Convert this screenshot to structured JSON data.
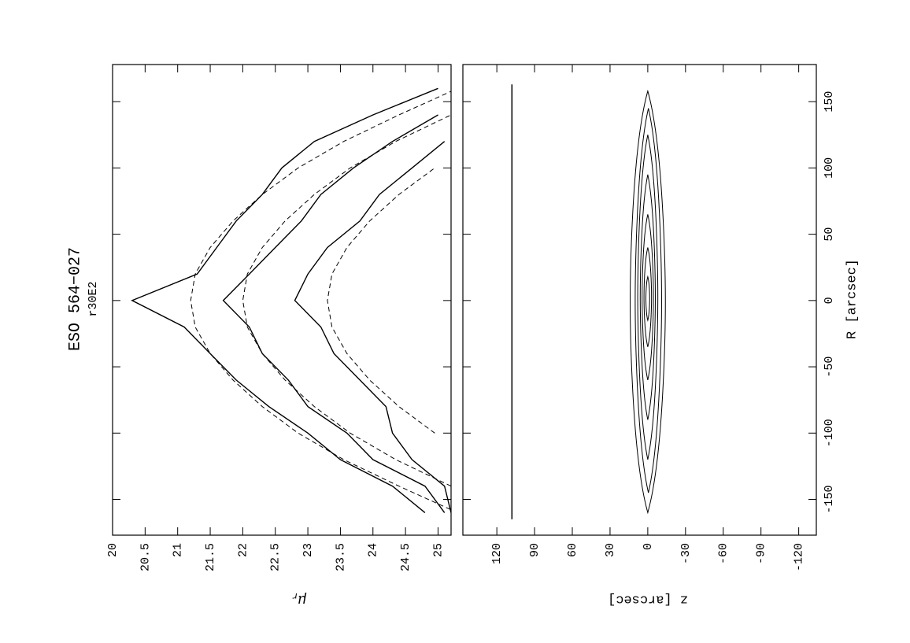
{
  "chart_data": [
    {
      "type": "line",
      "title": "ESO 564−027",
      "subtitle": "r30E2",
      "ylabel": "μ",
      "ylabel_sub": "r",
      "x": [
        -160,
        -140,
        -120,
        -100,
        -80,
        -60,
        -40,
        -20,
        0,
        20,
        40,
        60,
        80,
        100,
        120,
        140,
        160
      ],
      "xlim": [
        -177,
        178
      ],
      "xticks": [
        -150,
        -100,
        -50,
        0,
        50,
        100,
        150
      ],
      "ylim": [
        20,
        25.2
      ],
      "yticks": [
        20,
        20.5,
        21,
        21.5,
        22,
        22.5,
        23,
        23.5,
        24,
        24.5,
        25
      ],
      "series": [
        {
          "color": "#000000",
          "dashed": false,
          "values": [
            24.8,
            24.3,
            23.5,
            23.0,
            22.4,
            21.9,
            21.5,
            21.1,
            20.3,
            21.3,
            21.6,
            21.9,
            22.3,
            22.6,
            23.1,
            24.0,
            25.0
          ]
        },
        {
          "color": "#000000",
          "dashed": false,
          "values": [
            25.1,
            24.8,
            24.0,
            23.6,
            23.0,
            22.7,
            22.3,
            22.1,
            21.7,
            22.1,
            22.5,
            22.9,
            23.2,
            23.7,
            24.3,
            25.0,
            null
          ]
        },
        {
          "color": "#000000",
          "dashed": false,
          "values": [
            25.2,
            25.1,
            24.6,
            24.3,
            24.2,
            23.8,
            23.4,
            23.2,
            22.8,
            23.0,
            23.3,
            23.8,
            24.1,
            24.6,
            25.1,
            null,
            null
          ]
        },
        {
          "color": "#000000",
          "dashed": true,
          "values": [
            25.3,
            24.4,
            23.55,
            22.85,
            22.3,
            21.85,
            21.5,
            21.27,
            21.2,
            21.27,
            21.5,
            21.85,
            22.3,
            22.85,
            23.55,
            24.4,
            25.3
          ]
        },
        {
          "color": "#000000",
          "dashed": true,
          "values": [
            null,
            25.2,
            24.35,
            23.65,
            23.1,
            22.65,
            22.3,
            22.07,
            22.0,
            22.07,
            22.3,
            22.65,
            23.1,
            23.65,
            24.35,
            25.2,
            null
          ]
        },
        {
          "color": "#000000",
          "dashed": true,
          "values": [
            null,
            null,
            null,
            24.95,
            24.4,
            23.95,
            23.6,
            23.37,
            23.3,
            23.37,
            23.6,
            23.95,
            24.4,
            24.95,
            null,
            null,
            null
          ]
        }
      ]
    },
    {
      "type": "contour",
      "xlabel": "R [arcsec]",
      "ylabel": "z [arcsec]",
      "xlim": [
        -177,
        178
      ],
      "xticks": [
        -150,
        -100,
        -50,
        0,
        50,
        100,
        150
      ],
      "ylim": [
        147,
        -134
      ],
      "yticks": [
        120,
        90,
        60,
        30,
        0,
        -30,
        -60,
        -90,
        -120
      ],
      "color": "#000000",
      "contours": [
        {
          "r": [
            -160,
            158
          ],
          "z": [
            -14,
            14
          ]
        },
        {
          "r": [
            -145,
            145
          ],
          "z": [
            -11,
            10
          ]
        },
        {
          "r": [
            -120,
            125
          ],
          "z": [
            -8,
            8
          ]
        },
        {
          "r": [
            -90,
            95
          ],
          "z": [
            -6,
            6
          ]
        },
        {
          "r": [
            -60,
            65
          ],
          "z": [
            -4.5,
            4.5
          ]
        },
        {
          "r": [
            -35,
            40
          ],
          "z": [
            -3,
            3
          ]
        },
        {
          "r": [
            -15,
            18
          ],
          "z": [
            -1.5,
            1.5
          ]
        }
      ],
      "scale_bar": {
        "r": [
          -165,
          163
        ],
        "z": 108
      }
    }
  ]
}
